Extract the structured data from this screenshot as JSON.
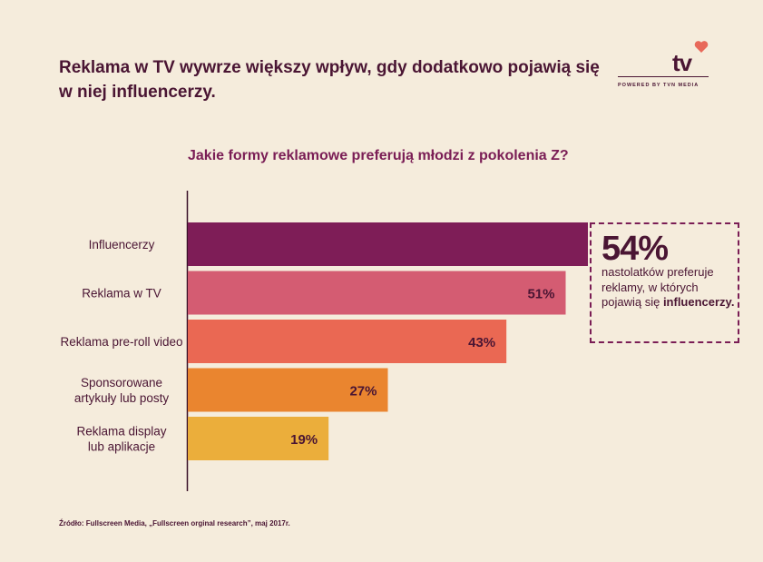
{
  "header": {
    "title": "Reklama w TV wywrze większy wpływ, gdy dodatkowo pojawią się w niej influencerzy."
  },
  "logo": {
    "text": "tv",
    "tagline": "POWERED BY TVN MEDIA",
    "heart_icon": "heart-icon",
    "accent": "#e8695a"
  },
  "chart_data": {
    "type": "bar",
    "orientation": "horizontal",
    "title": "Jakie formy reklamowe preferują młodzi z pokolenia Z?",
    "categories": [
      "Influencerzy",
      "Reklama w TV",
      "Reklama pre-roll video",
      "Sponsorowane artykuły lub posty",
      "Reklama display lub aplikacje"
    ],
    "category_lines": [
      [
        "Influencerzy"
      ],
      [
        "Reklama w TV"
      ],
      [
        "Reklama pre-roll video"
      ],
      [
        "Sponsorowane",
        "artykuły lub posty"
      ],
      [
        "Reklama display",
        "lub aplikacje"
      ]
    ],
    "values": [
      54,
      51,
      43,
      27,
      19
    ],
    "data_labels": [
      "",
      "51%",
      "43%",
      "27%",
      "19%"
    ],
    "colors": [
      "#7e1d57",
      "#d45c72",
      "#ea6853",
      "#ea852f",
      "#ebae3b"
    ],
    "xlim": [
      0,
      54
    ],
    "grid": false,
    "legend": "none"
  },
  "callout": {
    "value": "54%",
    "text_plain": "nastolatków preferuje reklamy, w których pojawią się ",
    "text_bold": "influencerzy."
  },
  "footer": {
    "source": "Źródło: Fullscreen Media, „Fullscreen orginal research”, maj 2017r."
  }
}
